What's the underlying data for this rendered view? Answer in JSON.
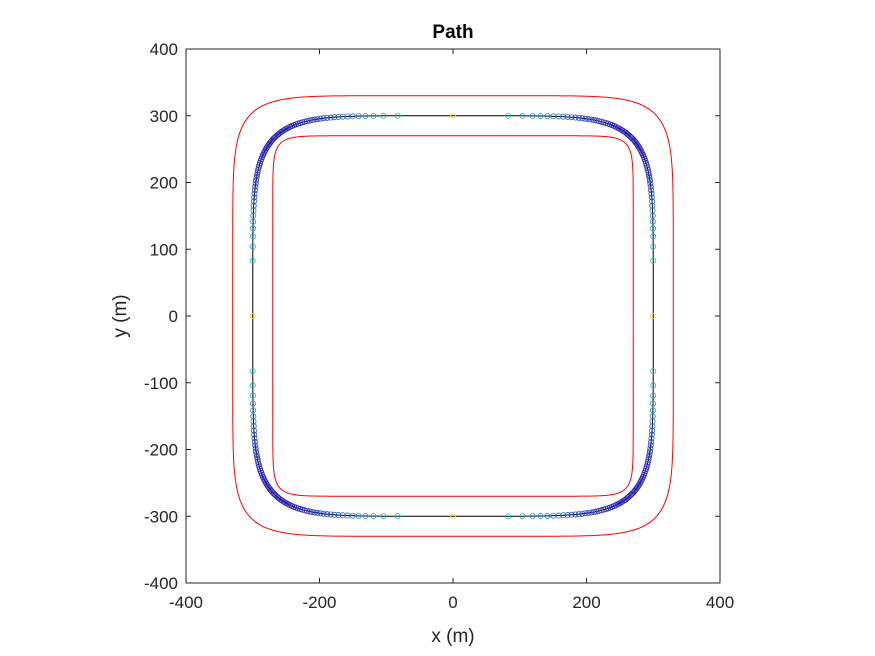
{
  "chart_data": {
    "type": "line",
    "title": "Path",
    "xlabel": "x (m)",
    "ylabel": "y (m)",
    "xlim": [
      -400,
      400
    ],
    "ylim": [
      -400,
      400
    ],
    "xticks": [
      -400,
      -200,
      0,
      200,
      400
    ],
    "yticks": [
      -400,
      -300,
      -200,
      -100,
      0,
      100,
      200,
      300,
      400
    ],
    "xtick_labels": [
      "-400",
      "-200",
      "0",
      "200",
      "400"
    ],
    "ytick_labels": [
      "-400",
      "-300",
      "-200",
      "-100",
      "0",
      "100",
      "200",
      "300",
      "400"
    ],
    "grid": false,
    "box": true,
    "aspect": "equal",
    "series": [
      {
        "role": "outer-boundary",
        "shape": "superellipse",
        "half_width": 330,
        "exponent": 8,
        "color": "#ff0000"
      },
      {
        "role": "inner-boundary",
        "shape": "superellipse",
        "half_width": 270,
        "exponent": 16,
        "color": "#ff0000"
      },
      {
        "role": "path",
        "shape": "superellipse",
        "half_width": 300,
        "exponent": 6,
        "color": "#000000",
        "markers": "circle",
        "marker_count": 300,
        "marker_colormap": [
          "#2a1fb8",
          "#1f9ad8",
          "#22c9a8",
          "#9ed13a",
          "#f9e21b"
        ]
      }
    ]
  }
}
